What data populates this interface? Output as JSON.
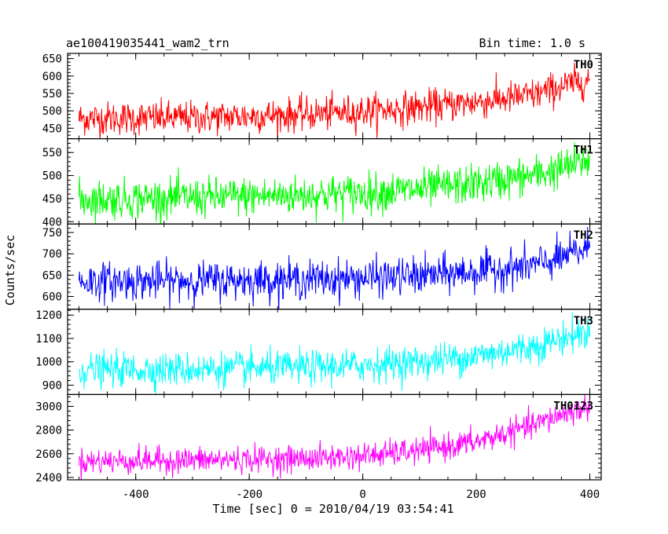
{
  "header": {
    "left_title": "ae100419035441_wam2_trn",
    "right_title": "Bin time: 1.0 s"
  },
  "chart_data": {
    "type": "line",
    "title": "ae100419035441_wam2_trn",
    "subtitle": "Bin time: 1.0 s",
    "xlabel": "Time [sec] 0 = 2010/04/19 03:54:41",
    "ylabel": "Counts/sec",
    "xlim": [
      -520,
      420
    ],
    "x_ticks": [
      -400,
      -200,
      0,
      200,
      400
    ],
    "x_range_data": [
      -500,
      400
    ],
    "bin_time_s": 1.0,
    "panels": [
      {
        "name": "TH0",
        "color": "#ff0000",
        "ylim": [
          420,
          665
        ],
        "y_ticks": [
          450,
          500,
          550,
          600,
          650
        ],
        "trend": {
          "x": [
            -500,
            -300,
            -100,
            0,
            100,
            200,
            300,
            350,
            400
          ],
          "y": [
            478,
            480,
            490,
            498,
            510,
            525,
            545,
            570,
            590
          ]
        },
        "noise_sd": 24
      },
      {
        "name": "TH1",
        "color": "#00ff00",
        "ylim": [
          395,
          580
        ],
        "y_ticks": [
          400,
          450,
          500,
          550
        ],
        "trend": {
          "x": [
            -500,
            -300,
            -100,
            0,
            100,
            200,
            300,
            350,
            400
          ],
          "y": [
            448,
            452,
            458,
            462,
            470,
            482,
            500,
            515,
            535
          ]
        },
        "noise_sd": 21
      },
      {
        "name": "TH2",
        "color": "#0000ff",
        "ylim": [
          570,
          770
        ],
        "y_ticks": [
          600,
          650,
          700,
          750
        ],
        "trend": {
          "x": [
            -500,
            -300,
            -100,
            0,
            100,
            200,
            300,
            350,
            400
          ],
          "y": [
            635,
            637,
            640,
            643,
            648,
            658,
            672,
            690,
            715
          ]
        },
        "noise_sd": 22
      },
      {
        "name": "TH3",
        "color": "#00ffff",
        "ylim": [
          860,
          1225
        ],
        "y_ticks": [
          900,
          1000,
          1100,
          1200
        ],
        "trend": {
          "x": [
            -500,
            -300,
            -100,
            0,
            100,
            200,
            300,
            350,
            400
          ],
          "y": [
            965,
            968,
            975,
            985,
            1000,
            1025,
            1065,
            1100,
            1130
          ]
        },
        "noise_sd": 36
      },
      {
        "name": "TH0123",
        "color": "#ff00ff",
        "ylim": [
          2380,
          3100
        ],
        "y_ticks": [
          2400,
          2600,
          2800,
          3000
        ],
        "trend": {
          "x": [
            -500,
            -300,
            -100,
            0,
            100,
            200,
            300,
            350,
            400
          ],
          "y": [
            2535,
            2545,
            2560,
            2580,
            2625,
            2700,
            2840,
            2930,
            3000
          ]
        },
        "noise_sd": 55
      }
    ]
  }
}
